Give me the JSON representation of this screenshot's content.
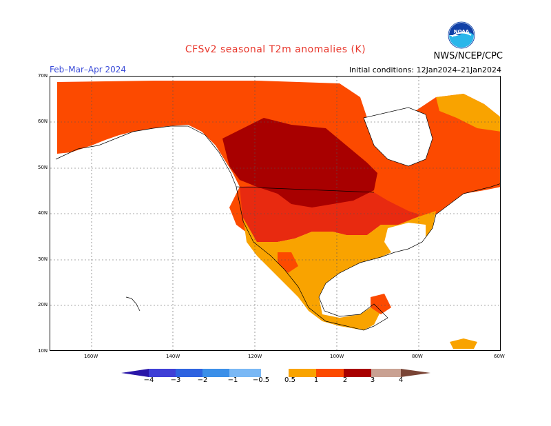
{
  "header": {
    "title": "CFSv2 seasonal T2m anomalies (K)",
    "period": "Feb–Mar–Apr 2024",
    "initial_conditions": "Initial conditions: 12Jan2024–21Jan2024",
    "agency": "NWS/NCEP/CPC",
    "logo_text": "NOAA"
  },
  "axes": {
    "lat_labels": [
      "70N",
      "60N",
      "50N",
      "40N",
      "30N",
      "20N",
      "10N"
    ],
    "lon_labels": [
      "160W",
      "140W",
      "120W",
      "100W",
      "80W",
      "60W"
    ]
  },
  "colorbar": {
    "labels": [
      "−4",
      "−3",
      "−2",
      "−1",
      "−0.5",
      "0.5",
      "1",
      "2",
      "3",
      "4"
    ],
    "colors": {
      "lt_neg4": "#2a17a8",
      "neg4_neg3": "#3f3fd6",
      "neg3_neg2": "#2e63e0",
      "neg2_neg1": "#3b8fe8",
      "neg1_neg05": "#7ab8f5",
      "neutral": "#ffffff",
      "p05_1": "#f9a300",
      "p1_2": "#fc4a00",
      "p2_3": "#e82a10",
      "p3_4": "#a80000",
      "gt4": "#c9a192",
      "extreme": "#7a4536"
    }
  }
}
